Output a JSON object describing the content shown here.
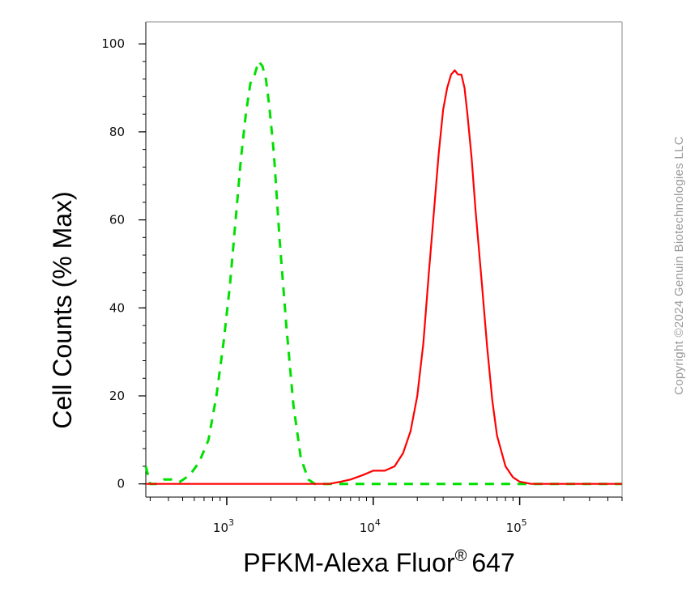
{
  "chart_data": {
    "type": "line",
    "xlabel": "PFKM-Alexa Fluor",
    "xlabel_sup": "®",
    "xlabel_suffix": "647",
    "ylabel": "Cell Counts (% Max)",
    "x_scale": "log",
    "xlim": [
      280,
      500000
    ],
    "ylim": [
      -3,
      105
    ],
    "y_ticks": [
      0,
      20,
      40,
      60,
      80,
      100
    ],
    "x_ticks": [
      {
        "value": 1000,
        "base": "10",
        "exp": "3"
      },
      {
        "value": 10000,
        "base": "10",
        "exp": "4"
      },
      {
        "value": 100000,
        "base": "10",
        "exp": "5"
      }
    ],
    "grid": false,
    "legend": "none",
    "series": [
      {
        "color": "#00e000",
        "style": "dashed",
        "x": [
          280,
          300,
          330,
          370,
          420,
          480,
          560,
          650,
          750,
          850,
          950,
          1050,
          1150,
          1250,
          1350,
          1450,
          1550,
          1650,
          1750,
          1850,
          1950,
          2100,
          2300,
          2550,
          2850,
          3200,
          3600,
          4000,
          5000,
          10000,
          20000,
          50000,
          100000,
          500000
        ],
        "y": [
          4,
          0,
          0,
          1,
          1,
          0.5,
          2,
          5,
          10,
          20,
          32,
          45,
          60,
          74,
          84,
          91,
          93,
          96,
          95,
          92,
          86,
          75,
          55,
          36,
          18,
          6,
          1,
          0,
          0,
          0,
          0,
          0,
          0,
          0
        ]
      },
      {
        "color": "#ff0000",
        "style": "solid",
        "x": [
          280,
          1000,
          3000,
          5000,
          6000,
          7000,
          8500,
          10000,
          12000,
          14000,
          16000,
          18000,
          20000,
          22000,
          24000,
          26000,
          28000,
          30000,
          32000,
          34000,
          36000,
          38000,
          40000,
          42000,
          44000,
          47000,
          50000,
          55000,
          60000,
          65000,
          70000,
          80000,
          90000,
          100000,
          120000,
          150000,
          500000
        ],
        "y": [
          0,
          0,
          0,
          0,
          0.5,
          1,
          2,
          3,
          3,
          4,
          7,
          12,
          20,
          32,
          48,
          62,
          75,
          85,
          90,
          93,
          94,
          93,
          93,
          90,
          84,
          74,
          62,
          46,
          31,
          19,
          11,
          4,
          1.5,
          0.5,
          0,
          0,
          0
        ]
      }
    ]
  },
  "watermark": "Copyright ©2024 Genuin Biotechnologies LLC"
}
